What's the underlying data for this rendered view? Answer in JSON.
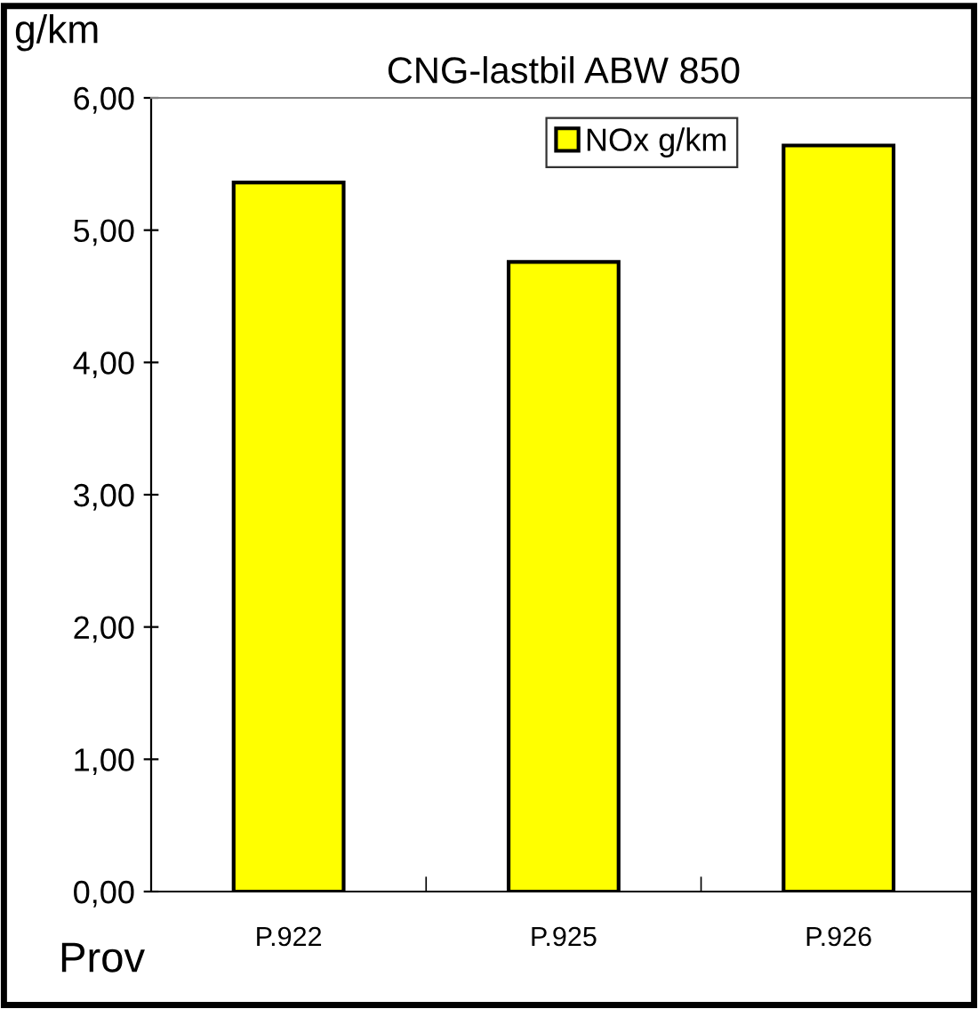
{
  "chart_data": {
    "type": "bar",
    "title": "CNG-lastbil ABW 850",
    "ylabel": "g/km",
    "xlabel": "Prov",
    "categories": [
      "P.922",
      "P.925",
      "P.926"
    ],
    "series": [
      {
        "name": "NOx g/km",
        "color": "#ffff00",
        "values": [
          5.36,
          4.76,
          5.64
        ]
      }
    ],
    "ylim": [
      0,
      6
    ],
    "yticks": [
      {
        "value": 0,
        "label": "0,00"
      },
      {
        "value": 1,
        "label": "1,00"
      },
      {
        "value": 2,
        "label": "2,00"
      },
      {
        "value": 3,
        "label": "3,00"
      },
      {
        "value": 4,
        "label": "4,00"
      },
      {
        "value": 5,
        "label": "5,00"
      },
      {
        "value": 6,
        "label": "6,00"
      }
    ],
    "grid": false,
    "legend": "top right"
  }
}
